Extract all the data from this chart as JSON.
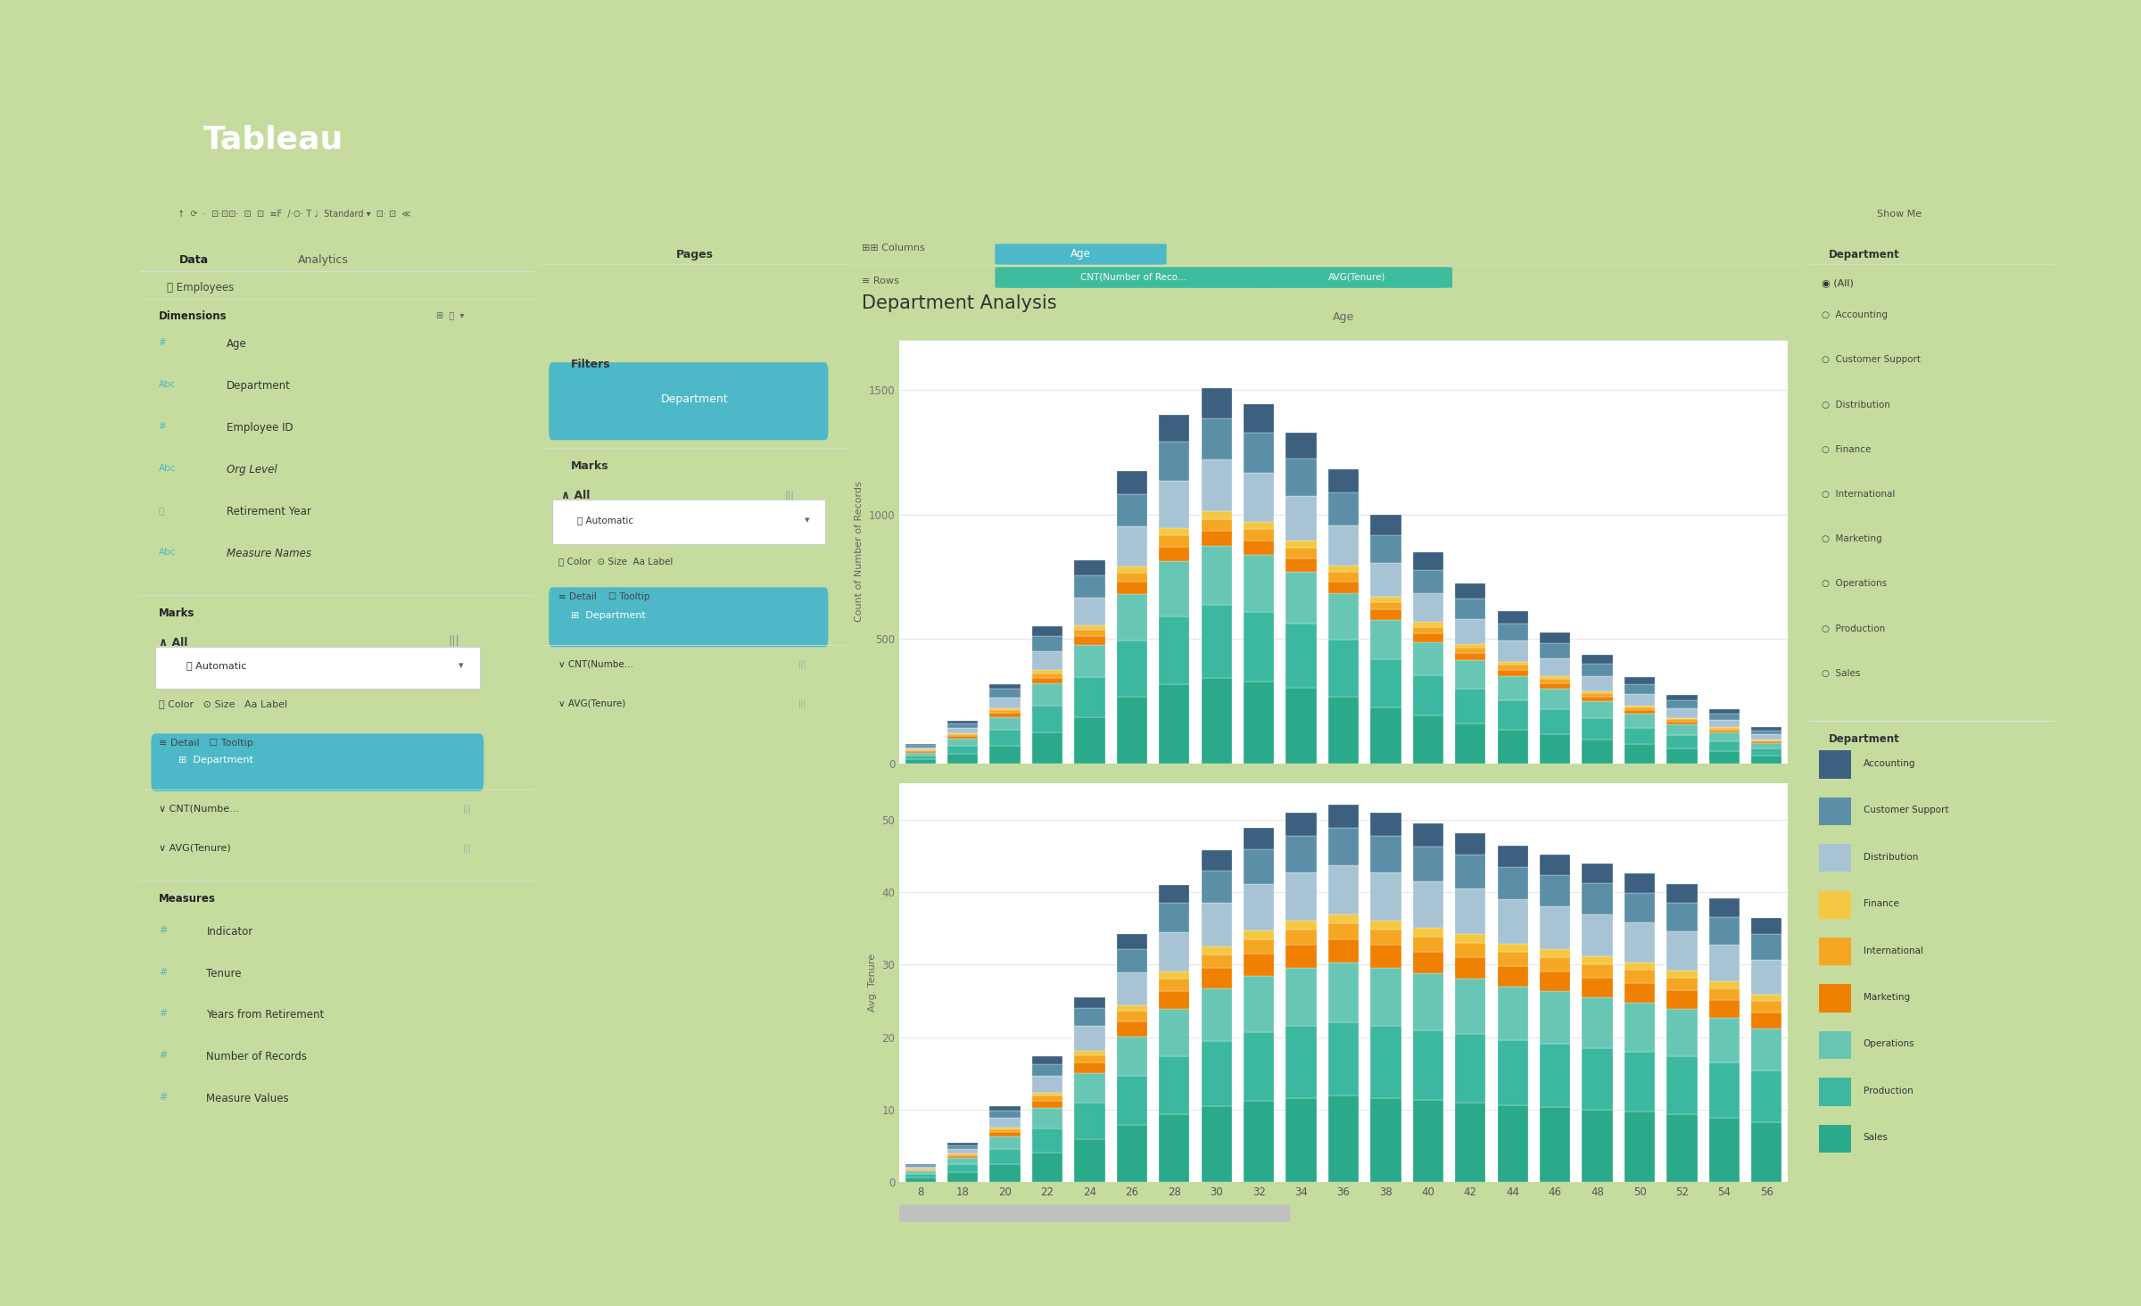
{
  "bg_outer": "#c5dc9e",
  "bg_card": "#ffffff",
  "tableau_label_bg": "#7ab648",
  "title": "Department Analysis",
  "age_label": "Age",
  "chart1_ylabel": "Count of Number of Records",
  "chart2_ylabel": "Avg. Tenure",
  "ages": [
    8,
    18,
    20,
    22,
    24,
    26,
    28,
    30,
    32,
    34,
    36,
    38,
    40,
    42,
    44,
    46,
    48,
    50,
    52,
    54,
    56
  ],
  "departments": [
    "Sales",
    "Production",
    "Operations",
    "Marketing",
    "International",
    "Finance",
    "Distribution",
    "Customer Support",
    "Accounting"
  ],
  "dept_colors": [
    "#2aaa8a",
    "#3db8a0",
    "#68c7b4",
    "#f08000",
    "#f5a623",
    "#f5c842",
    "#a8c4d4",
    "#5b8fa8",
    "#3d6080"
  ],
  "dept_colors_legend": [
    "#3d6080",
    "#5b8fa8",
    "#a8c4d4",
    "#f5c842",
    "#f5a623",
    "#f08000",
    "#68c7b4",
    "#3db8a0",
    "#2aaa8a"
  ],
  "dept_legend_order": [
    "Accounting",
    "Customer Support",
    "Distribution",
    "Finance",
    "International",
    "Marketing",
    "Operations",
    "Production",
    "Sales"
  ],
  "filter_color": "#4db8c8",
  "green_pill": "#3dbc9e",
  "teal_pill": "#4db8c8",
  "chart1_data": [
    [
      18,
      40,
      74,
      127,
      188,
      268,
      320,
      344,
      330,
      304,
      270,
      228,
      193,
      164,
      139,
      119,
      99,
      79,
      63,
      50,
      33
    ],
    [
      15,
      34,
      63,
      108,
      160,
      228,
      272,
      292,
      280,
      258,
      229,
      193,
      164,
      139,
      118,
      101,
      84,
      67,
      53,
      42,
      28
    ],
    [
      12,
      28,
      52,
      88,
      130,
      185,
      220,
      236,
      226,
      208,
      185,
      156,
      132,
      112,
      95,
      82,
      68,
      55,
      43,
      34,
      23
    ],
    [
      5,
      9,
      15,
      23,
      34,
      48,
      58,
      62,
      59,
      54,
      48,
      41,
      34,
      29,
      25,
      21,
      18,
      14,
      11,
      9,
      6
    ],
    [
      4,
      7,
      12,
      18,
      27,
      38,
      45,
      48,
      46,
      42,
      38,
      32,
      27,
      23,
      20,
      17,
      14,
      11,
      9,
      7,
      5
    ],
    [
      3,
      5,
      8,
      12,
      18,
      25,
      30,
      32,
      30,
      28,
      25,
      21,
      18,
      15,
      13,
      11,
      9,
      7,
      6,
      5,
      3
    ],
    [
      10,
      22,
      42,
      75,
      110,
      160,
      190,
      205,
      195,
      180,
      160,
      135,
      115,
      98,
      83,
      72,
      60,
      48,
      38,
      30,
      20
    ],
    [
      8,
      18,
      35,
      60,
      90,
      130,
      155,
      165,
      160,
      148,
      132,
      112,
      95,
      82,
      70,
      60,
      50,
      40,
      32,
      25,
      17
    ],
    [
      5,
      10,
      20,
      40,
      60,
      90,
      110,
      120,
      115,
      105,
      95,
      80,
      70,
      60,
      50,
      45,
      35,
      28,
      22,
      18,
      12
    ]
  ],
  "chart2_data": [
    [
      0.6,
      1.3,
      2.5,
      4.0,
      5.9,
      7.9,
      9.4,
      10.5,
      11.2,
      11.6,
      11.9,
      11.6,
      11.3,
      11.0,
      10.6,
      10.3,
      10.0,
      9.7,
      9.4,
      8.9,
      8.3
    ],
    [
      0.5,
      1.1,
      2.1,
      3.4,
      5.0,
      6.7,
      8.0,
      8.9,
      9.5,
      9.9,
      10.1,
      9.9,
      9.6,
      9.4,
      9.0,
      8.8,
      8.5,
      8.3,
      8.0,
      7.6,
      7.1
    ],
    [
      0.4,
      0.9,
      1.7,
      2.8,
      4.1,
      5.5,
      6.5,
      7.3,
      7.8,
      8.1,
      8.3,
      8.1,
      7.9,
      7.7,
      7.4,
      7.2,
      7.0,
      6.8,
      6.5,
      6.2,
      5.8
    ],
    [
      0.15,
      0.3,
      0.6,
      1.0,
      1.5,
      2.1,
      2.5,
      2.8,
      3.0,
      3.1,
      3.2,
      3.1,
      3.0,
      2.95,
      2.85,
      2.8,
      2.7,
      2.65,
      2.55,
      2.4,
      2.25
    ],
    [
      0.1,
      0.2,
      0.4,
      0.7,
      1.0,
      1.4,
      1.7,
      1.9,
      2.0,
      2.1,
      2.15,
      2.1,
      2.05,
      2.0,
      1.95,
      1.9,
      1.85,
      1.8,
      1.75,
      1.65,
      1.55
    ],
    [
      0.05,
      0.1,
      0.2,
      0.4,
      0.6,
      0.8,
      1.0,
      1.1,
      1.2,
      1.25,
      1.3,
      1.25,
      1.2,
      1.15,
      1.1,
      1.1,
      1.05,
      1.0,
      0.98,
      0.95,
      0.9
    ],
    [
      0.3,
      0.7,
      1.4,
      2.3,
      3.4,
      4.5,
      5.4,
      6.0,
      6.4,
      6.7,
      6.8,
      6.7,
      6.5,
      6.3,
      6.1,
      5.9,
      5.8,
      5.6,
      5.4,
      5.1,
      4.8
    ],
    [
      0.2,
      0.5,
      1.0,
      1.7,
      2.5,
      3.3,
      4.0,
      4.5,
      4.8,
      5.0,
      5.1,
      5.0,
      4.8,
      4.7,
      4.5,
      4.4,
      4.3,
      4.1,
      4.0,
      3.8,
      3.5
    ],
    [
      0.1,
      0.3,
      0.6,
      1.0,
      1.5,
      2.0,
      2.5,
      2.8,
      3.0,
      3.2,
      3.3,
      3.2,
      3.1,
      3.0,
      2.9,
      2.8,
      2.8,
      2.7,
      2.6,
      2.5,
      2.3
    ]
  ],
  "grid_color": "#e8e8e8",
  "sidebar_color": "#f4f4f4",
  "panel_color": "#f9f9f9"
}
